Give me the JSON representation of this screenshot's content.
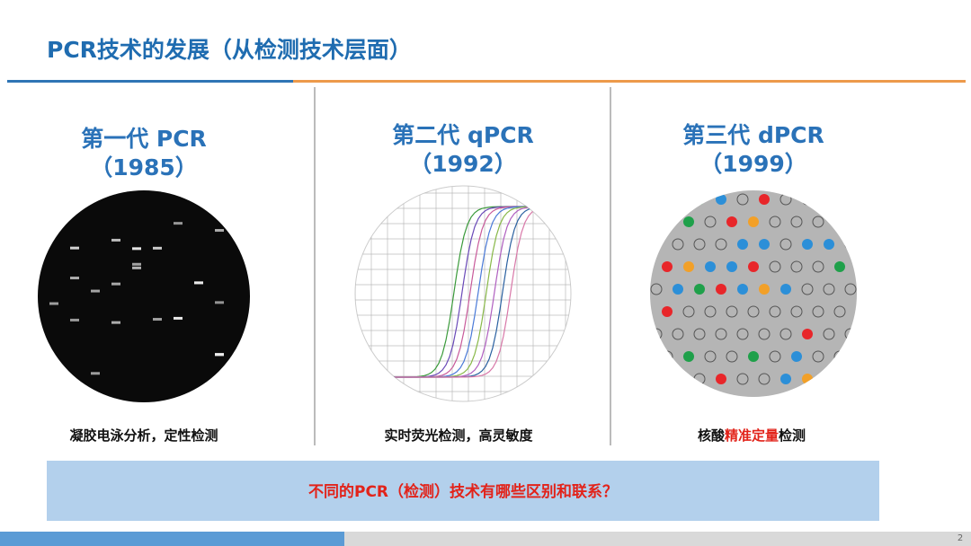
{
  "header": {
    "title": "PCR技术的发展（从检测技术层面）"
  },
  "columns": [
    {
      "heading": "第一代 PCR",
      "year": "（1985）",
      "caption": [
        "凝胶电泳分析，定性检测"
      ]
    },
    {
      "heading": "第二代 qPCR",
      "year": "（1992）",
      "caption": [
        "实时荧光检测，高灵敏度"
      ]
    },
    {
      "heading": "第三代 dPCR",
      "year": "（1999）",
      "caption": [
        "核酸",
        "精准定量",
        "检测"
      ]
    }
  ],
  "question": "不同的PCR（检测）技术有哪些区别和联系？",
  "page_number": "2"
}
